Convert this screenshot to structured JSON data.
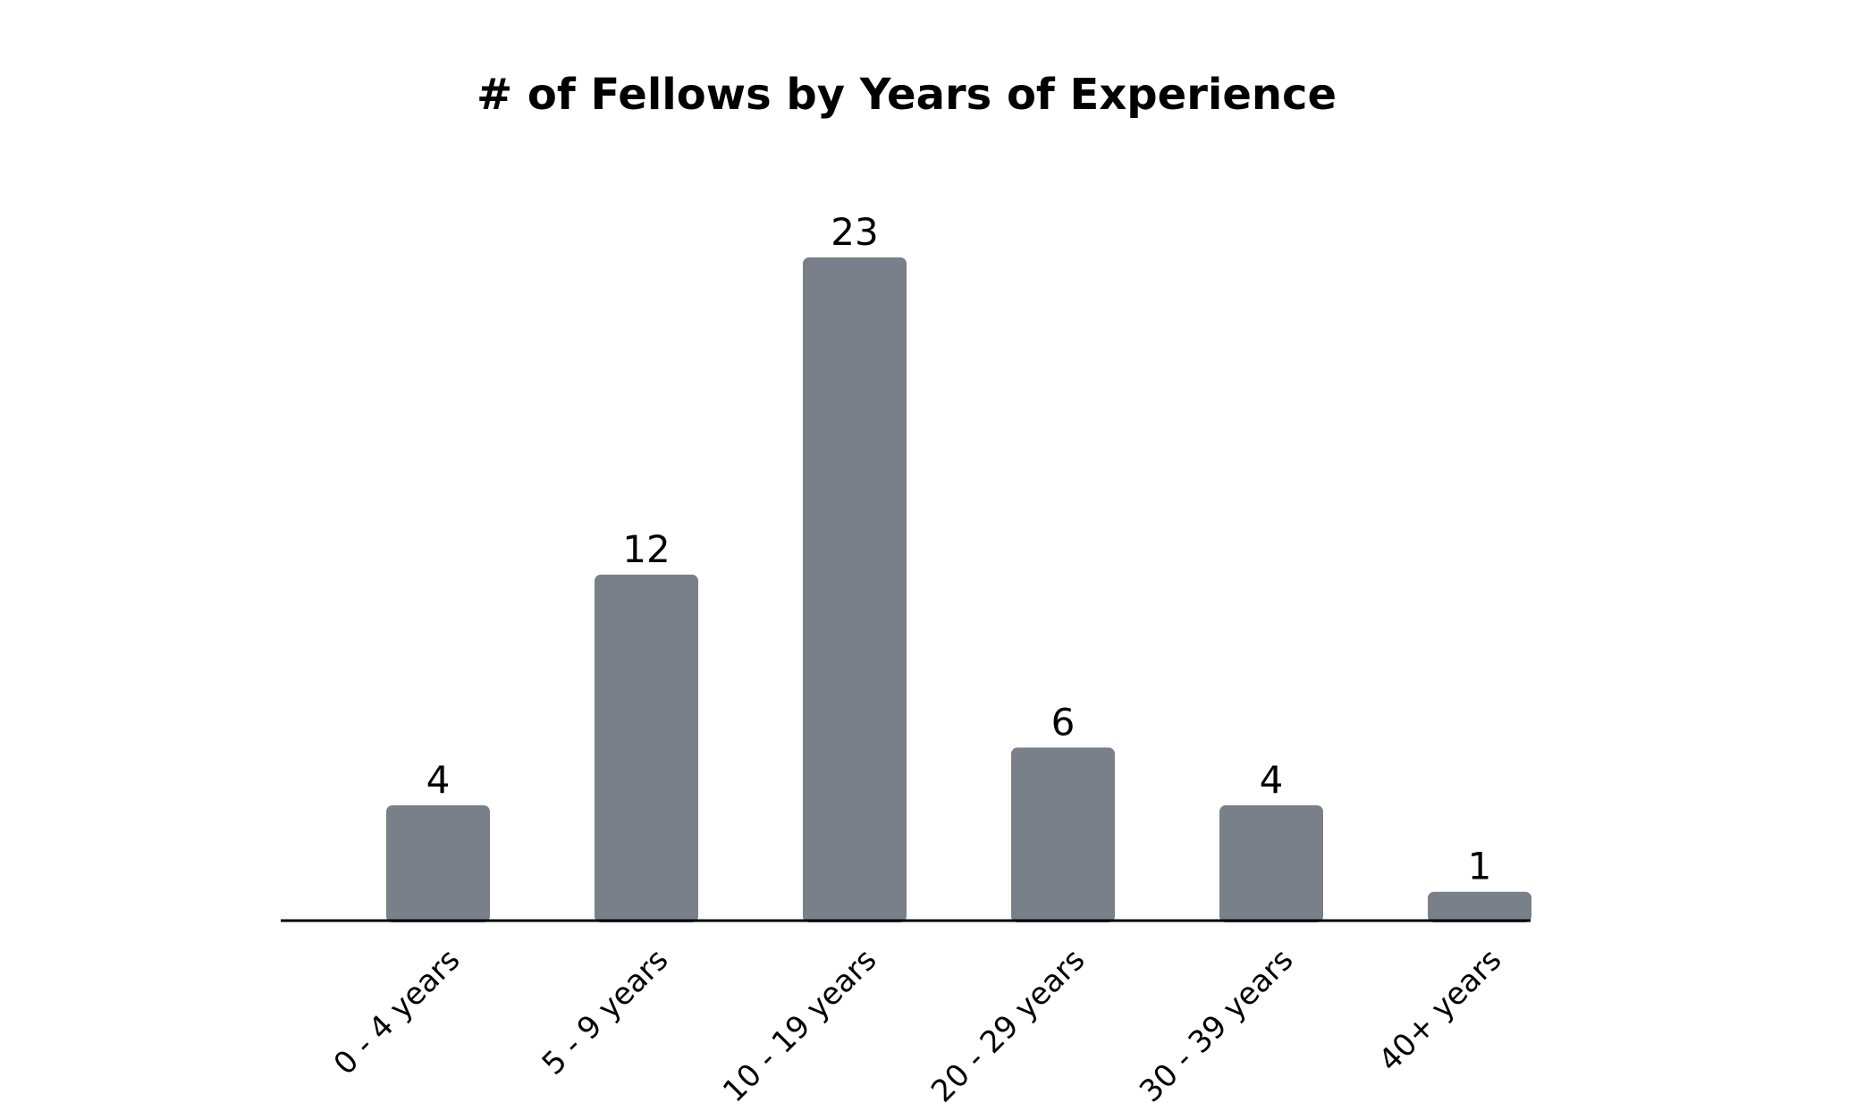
{
  "chart_data": {
    "type": "bar",
    "title": "# of Fellows by Years of Experience",
    "xlabel": "",
    "ylabel": "",
    "categories": [
      "0 - 4 years",
      "5 - 9 years",
      "10 - 19 years",
      "20 - 29 years",
      "30 - 39 years",
      "40+ years"
    ],
    "values": [
      4,
      12,
      23,
      6,
      4,
      1
    ],
    "ylim": [
      0,
      23
    ],
    "grid": false,
    "legend": "none",
    "bar_color": "#7a8089",
    "axis_color": "#000000",
    "data_labels": true
  }
}
